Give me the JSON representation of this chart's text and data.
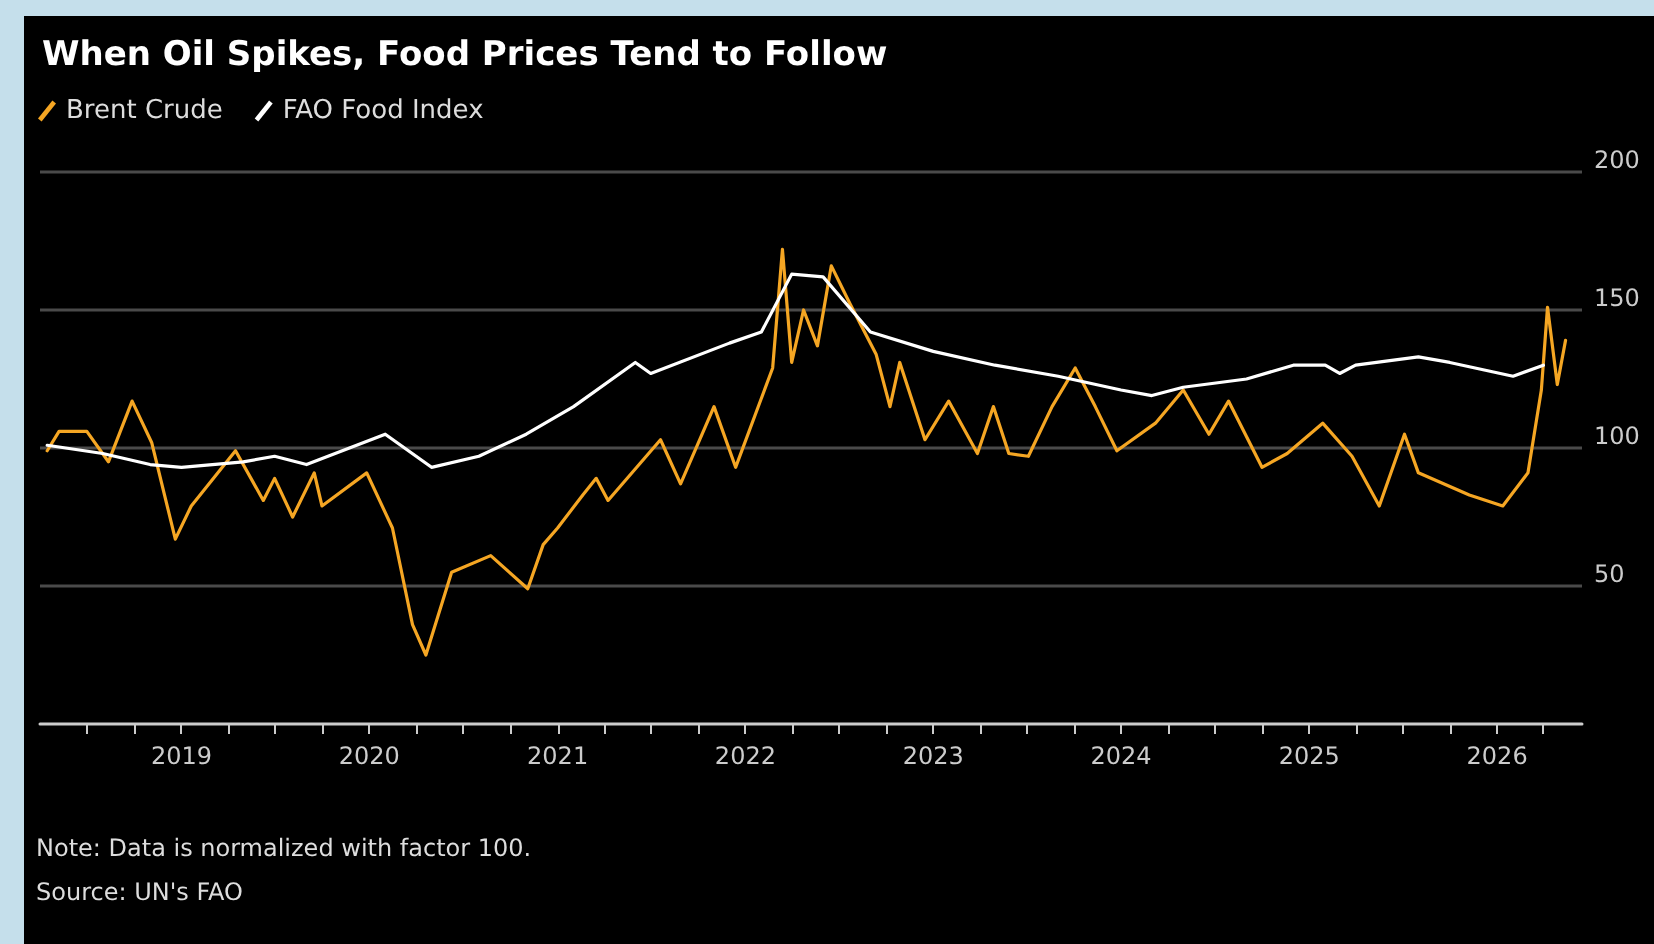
{
  "chart_data": {
    "type": "line",
    "title": "When Oil Spikes, Food Prices Tend to Follow",
    "legend": "top left",
    "grid": "y",
    "marker": "none",
    "line_style": "solid",
    "xlim": [
      "2018-04-01",
      "2026-06-15"
    ],
    "xticks": [
      {
        "value": "2018-07-01",
        "label": null
      },
      {
        "value": "2018-10-01",
        "label": null
      },
      {
        "value": "2019-01-01",
        "label": "2019"
      },
      {
        "value": "2019-04-01",
        "label": null
      },
      {
        "value": "2019-07-01",
        "label": null
      },
      {
        "value": "2019-10-01",
        "label": null
      },
      {
        "value": "2020-01-01",
        "label": "2020"
      },
      {
        "value": "2020-04-01",
        "label": null
      },
      {
        "value": "2020-07-01",
        "label": null
      },
      {
        "value": "2020-10-01",
        "label": null
      },
      {
        "value": "2021-01-01",
        "label": "2021"
      },
      {
        "value": "2021-04-01",
        "label": null
      },
      {
        "value": "2021-07-01",
        "label": null
      },
      {
        "value": "2021-10-01",
        "label": null
      },
      {
        "value": "2022-01-01",
        "label": "2022"
      },
      {
        "value": "2022-04-01",
        "label": null
      },
      {
        "value": "2022-07-01",
        "label": null
      },
      {
        "value": "2022-10-01",
        "label": null
      },
      {
        "value": "2023-01-01",
        "label": "2023"
      },
      {
        "value": "2023-04-01",
        "label": null
      },
      {
        "value": "2023-07-01",
        "label": null
      },
      {
        "value": "2023-10-01",
        "label": null
      },
      {
        "value": "2024-01-01",
        "label": "2024"
      },
      {
        "value": "2024-04-01",
        "label": null
      },
      {
        "value": "2024-07-01",
        "label": null
      },
      {
        "value": "2024-10-01",
        "label": null
      },
      {
        "value": "2025-01-01",
        "label": "2025"
      },
      {
        "value": "2025-04-01",
        "label": null
      },
      {
        "value": "2025-07-01",
        "label": null
      },
      {
        "value": "2025-10-01",
        "label": null
      },
      {
        "value": "2026-01-01",
        "label": "2026"
      },
      {
        "value": "2026-04-01",
        "label": null
      }
    ],
    "ylim": [
      0,
      200
    ],
    "yticks": [
      50,
      100,
      150,
      200
    ],
    "series": [
      {
        "name": "Brent Crude",
        "color": "#f5a623",
        "x": [
          "2018-04-15",
          "2018-05-08",
          "2018-07-01",
          "2018-08-12",
          "2018-09-27",
          "2018-11-04",
          "2018-12-20",
          "2019-01-20",
          "2019-04-16",
          "2019-06-09",
          "2019-07-01",
          "2019-08-05",
          "2019-09-16",
          "2019-10-01",
          "2019-12-27",
          "2020-02-15",
          "2020-03-25",
          "2020-04-20",
          "2020-06-09",
          "2020-08-24",
          "2020-11-04",
          "2020-12-04",
          "2021-01-01",
          "2021-02-19",
          "2021-03-17",
          "2021-04-09",
          "2021-07-20",
          "2021-08-28",
          "2021-11-01",
          "2021-12-13",
          "2022-02-23",
          "2022-03-14",
          "2022-04-01",
          "2022-04-24",
          "2022-05-21",
          "2022-06-17",
          "2022-07-24",
          "2022-09-12",
          "2022-10-09",
          "2022-10-28",
          "2022-12-16",
          "2023-01-31",
          "2023-03-28",
          "2023-04-28",
          "2023-05-28",
          "2023-07-05",
          "2023-08-20",
          "2023-10-04",
          "2023-11-12",
          "2023-12-24",
          "2024-03-08",
          "2024-05-01",
          "2024-06-20",
          "2024-07-28",
          "2024-10-01",
          "2024-11-19",
          "2025-01-27",
          "2025-03-25",
          "2025-05-17",
          "2025-07-05",
          "2025-08-01",
          "2025-11-08",
          "2026-01-12",
          "2026-03-02",
          "2026-03-28",
          "2026-04-09",
          "2026-04-28",
          "2026-05-14"
        ],
        "values": [
          99,
          106,
          106,
          95,
          117,
          102,
          67,
          79,
          99,
          81,
          89,
          75,
          91,
          79,
          91,
          71,
          36,
          25,
          55,
          61,
          49,
          65,
          71,
          83,
          89,
          81,
          103,
          87,
          115,
          93,
          129,
          172,
          131,
          150,
          137,
          166,
          152,
          134,
          115,
          131,
          103,
          117,
          98,
          115,
          98,
          97,
          115,
          129,
          115,
          99,
          109,
          121,
          105,
          117,
          93,
          98,
          109,
          97,
          79,
          105,
          91,
          83,
          79,
          91,
          121,
          151,
          123,
          139
        ]
      },
      {
        "name": "FAO Food Index",
        "color": "#ffffff",
        "x": [
          "2018-04-15",
          "2018-08-01",
          "2018-11-01",
          "2019-01-01",
          "2019-05-01",
          "2019-07-01",
          "2019-09-01",
          "2020-02-01",
          "2020-05-01",
          "2020-08-01",
          "2020-11-01",
          "2021-02-01",
          "2021-06-01",
          "2021-07-01",
          "2021-12-01",
          "2022-02-01",
          "2022-04-01",
          "2022-06-01",
          "2022-09-01",
          "2023-01-01",
          "2023-05-01",
          "2023-09-01",
          "2024-01-01",
          "2024-03-01",
          "2024-05-01",
          "2024-09-01",
          "2024-12-01",
          "2025-02-01",
          "2025-03-01",
          "2025-04-01",
          "2025-08-01",
          "2025-10-01",
          "2026-02-01",
          "2026-04-01"
        ],
        "values": [
          101,
          98,
          94,
          93,
          95,
          97,
          94,
          105,
          93,
          97,
          105,
          115,
          131,
          127,
          138,
          142,
          163,
          162,
          142,
          135,
          130,
          126,
          121,
          119,
          122,
          125,
          130,
          130,
          127,
          130,
          133,
          131,
          126,
          130
        ]
      }
    ],
    "annotations": [
      "Note: Data is normalized with factor 100.",
      "Source: UN's FAO"
    ]
  }
}
